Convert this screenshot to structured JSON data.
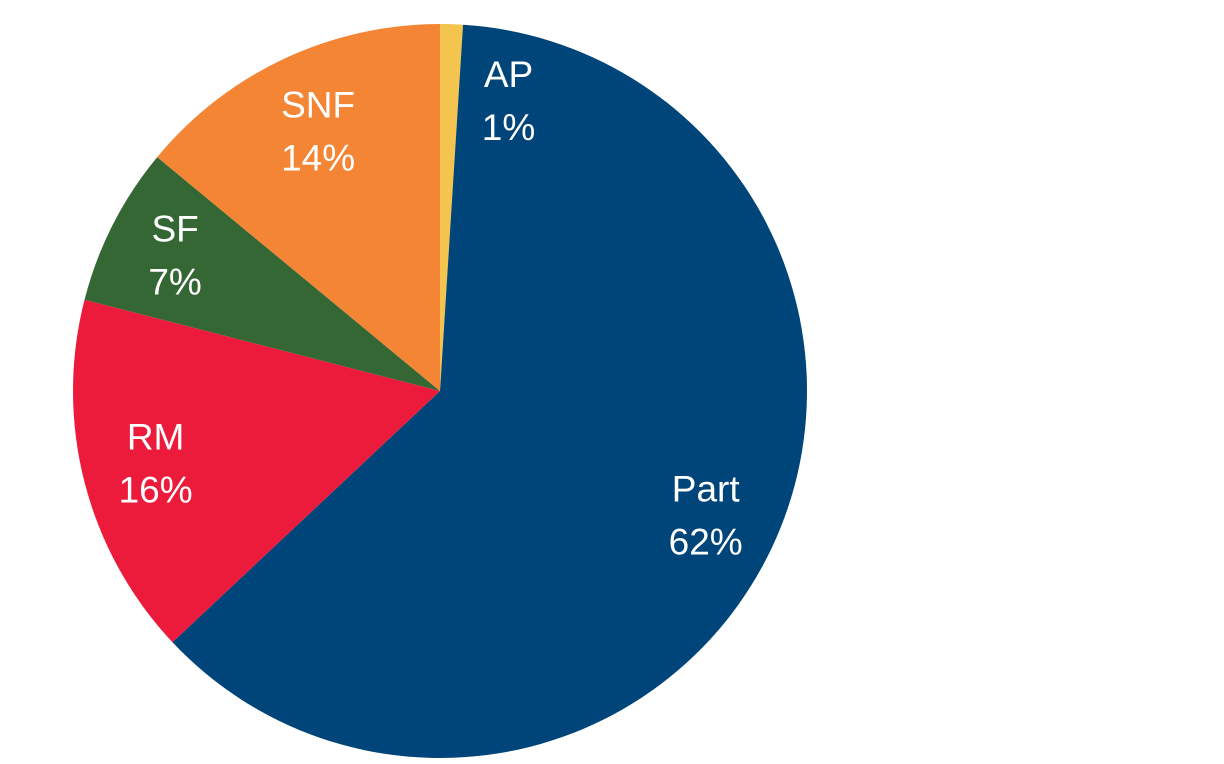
{
  "chart_data": {
    "type": "pie",
    "title": "",
    "slices": [
      {
        "label": "AP",
        "value": 1,
        "value_label": "1%",
        "color": "#F3C54E"
      },
      {
        "label": "Part",
        "value": 62,
        "value_label": "62%",
        "color": "#004579"
      },
      {
        "label": "RM",
        "value": 16,
        "value_label": "16%",
        "color": "#EC1B3C"
      },
      {
        "label": "SF",
        "value": 7,
        "value_label": "7%",
        "color": "#356734"
      },
      {
        "label": "SNF",
        "value": 14,
        "value_label": "14%",
        "color": "#F38534"
      }
    ],
    "start": "top",
    "direction": "clockwise",
    "legend": "none"
  }
}
